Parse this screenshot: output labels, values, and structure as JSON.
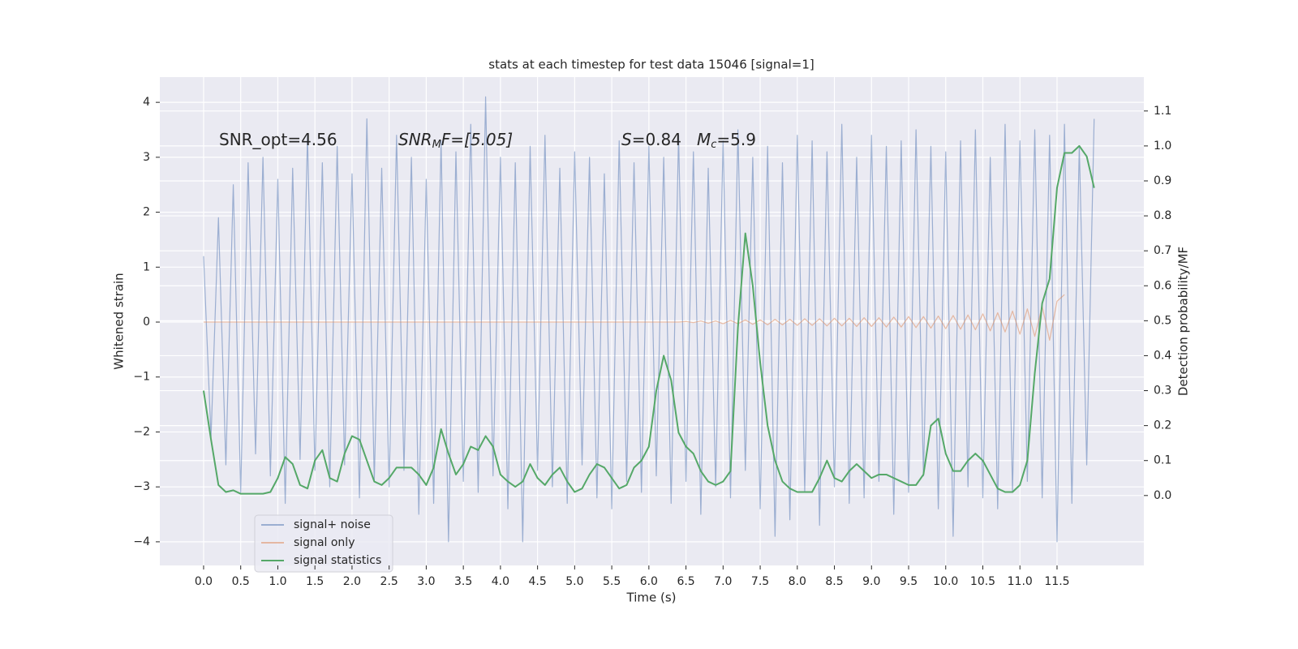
{
  "chart_data": {
    "type": "line",
    "title": "stats at each timestep for test data 15046 [signal=1]",
    "xlabel": "Time (s)",
    "ylabel": "Whitened strain",
    "y2label": "Detection probability/MF",
    "annotations": [
      [
        "SNR_opt=4.56"
      ],
      [
        "SNR",
        "M",
        "F=[5.05]"
      ],
      [
        "S",
        "=0.84"
      ],
      [
        "M",
        "c",
        "=5.9"
      ]
    ],
    "grid": true,
    "legend": "lower left",
    "xlim": [
      -0.59,
      12.67
    ],
    "ylim": [
      -4.43,
      4.46
    ],
    "y2lim": [
      -0.2,
      1.197
    ],
    "xticks": [
      {
        "value": 0,
        "label": "0.0"
      },
      {
        "value": 0.5,
        "label": "0.5"
      },
      {
        "value": 1,
        "label": "1.0"
      },
      {
        "value": 1.5,
        "label": "1.5"
      },
      {
        "value": 2,
        "label": "2.0"
      },
      {
        "value": 2.5,
        "label": "2.5"
      },
      {
        "value": 3,
        "label": "3.0"
      },
      {
        "value": 3.5,
        "label": "3.5"
      },
      {
        "value": 4,
        "label": "4.0"
      },
      {
        "value": 4.5,
        "label": "4.5"
      },
      {
        "value": 5,
        "label": "5.0"
      },
      {
        "value": 5.5,
        "label": "5.5"
      },
      {
        "value": 6,
        "label": "6.0"
      },
      {
        "value": 6.5,
        "label": "6.5"
      },
      {
        "value": 7,
        "label": "7.0"
      },
      {
        "value": 7.5,
        "label": "7.5"
      },
      {
        "value": 8,
        "label": "8.0"
      },
      {
        "value": 8.5,
        "label": "8.5"
      },
      {
        "value": 9,
        "label": "9.0"
      },
      {
        "value": 9.5,
        "label": "9.5"
      },
      {
        "value": 10,
        "label": "10.0"
      },
      {
        "value": 10.5,
        "label": "10.5"
      },
      {
        "value": 11,
        "label": "11.0"
      },
      {
        "value": 11.5,
        "label": "11.5"
      }
    ],
    "yticks": [
      {
        "value": -4,
        "label": "−4"
      },
      {
        "value": -3,
        "label": "−3"
      },
      {
        "value": -2,
        "label": "−2"
      },
      {
        "value": -1,
        "label": "−1"
      },
      0,
      1,
      2,
      3,
      4
    ],
    "y2ticks": [
      {
        "value": 0,
        "label": "0.0"
      },
      {
        "value": 0.1,
        "label": "0.1"
      },
      {
        "value": 0.2,
        "label": "0.2"
      },
      {
        "value": 0.3,
        "label": "0.3"
      },
      {
        "value": 0.4,
        "label": "0.4"
      },
      {
        "value": 0.5,
        "label": "0.5"
      },
      {
        "value": 0.6,
        "label": "0.6"
      },
      {
        "value": 0.7,
        "label": "0.7"
      },
      {
        "value": 0.8,
        "label": "0.8"
      },
      {
        "value": 0.9,
        "label": "0.9"
      },
      {
        "value": 1,
        "label": "1.0"
      },
      {
        "value": 1.1,
        "label": "1.1"
      }
    ],
    "x": [
      0,
      0.1,
      0.2,
      0.3,
      0.4,
      0.5,
      0.6,
      0.7,
      0.8,
      0.9,
      1,
      1.1,
      1.2,
      1.3,
      1.4,
      1.5,
      1.6,
      1.7,
      1.8,
      1.9,
      2,
      2.1,
      2.2,
      2.3,
      2.4,
      2.5,
      2.6,
      2.7,
      2.8,
      2.9,
      3,
      3.1,
      3.2,
      3.3,
      3.4,
      3.5,
      3.6,
      3.7,
      3.8,
      3.9,
      4,
      4.1,
      4.2,
      4.3,
      4.4,
      4.5,
      4.6,
      4.7,
      4.8,
      4.9,
      5,
      5.1,
      5.2,
      5.3,
      5.4,
      5.5,
      5.6,
      5.7,
      5.8,
      5.9,
      6,
      6.1,
      6.2,
      6.3,
      6.4,
      6.5,
      6.6,
      6.7,
      6.8,
      6.9,
      7,
      7.1,
      7.2,
      7.3,
      7.4,
      7.5,
      7.6,
      7.7,
      7.8,
      7.9,
      8,
      8.1,
      8.2,
      8.3,
      8.4,
      8.5,
      8.6,
      8.7,
      8.8,
      8.9,
      9,
      9.1,
      9.2,
      9.3,
      9.4,
      9.5,
      9.6,
      9.7,
      9.8,
      9.9,
      10,
      10.1,
      10.2,
      10.3,
      10.4,
      10.5,
      10.6,
      10.7,
      10.8,
      10.9,
      11,
      11.1,
      11.2,
      11.3,
      11.4,
      11.5,
      11.6,
      11.7,
      11.8,
      11.9,
      12
    ],
    "series": [
      {
        "name": "signal+ noise",
        "color": "#4c72b0",
        "opacity": 0.5,
        "axis": "y",
        "values": [
          1.2,
          -2.1,
          1.9,
          -2.6,
          2.5,
          -3.1,
          2.9,
          -2.4,
          3.0,
          -2.8,
          2.6,
          -3.3,
          2.8,
          -2.5,
          3.4,
          -2.7,
          2.9,
          -3.0,
          3.2,
          -2.6,
          2.7,
          -3.2,
          3.7,
          -2.9,
          2.8,
          -3.0,
          3.4,
          -2.7,
          3.0,
          -3.5,
          2.6,
          -3.3,
          3.3,
          -4.0,
          3.1,
          -2.9,
          3.6,
          -3.1,
          4.1,
          -2.8,
          3.0,
          -3.4,
          2.9,
          -4.0,
          3.2,
          -2.7,
          3.4,
          -3.0,
          2.8,
          -3.3,
          3.1,
          -2.6,
          3.0,
          -3.2,
          2.7,
          -3.4,
          3.3,
          -2.9,
          2.9,
          -3.1,
          3.2,
          -2.8,
          3.0,
          -3.3,
          3.4,
          -2.9,
          3.1,
          -3.5,
          2.8,
          -3.0,
          3.3,
          -3.2,
          3.5,
          -2.7,
          3.0,
          -3.4,
          3.2,
          -3.9,
          2.9,
          -3.6,
          3.4,
          -3.1,
          3.3,
          -3.7,
          3.1,
          -3.0,
          3.6,
          -3.3,
          3.0,
          -3.2,
          3.4,
          -2.9,
          3.2,
          -3.5,
          3.3,
          -3.1,
          3.5,
          -2.8,
          3.2,
          -3.4,
          3.1,
          -3.9,
          3.3,
          -3.0,
          3.5,
          -3.2,
          3.0,
          -3.4,
          3.6,
          -3.1,
          3.3,
          -2.9,
          3.5,
          -3.2,
          3.4,
          -4.0,
          3.6,
          -3.3,
          3.2,
          -2.6,
          3.7
        ]
      },
      {
        "name": "signal only",
        "color": "#dd8452",
        "opacity": 0.5,
        "axis": "y",
        "values": [
          0,
          0,
          0,
          0,
          0,
          0,
          0,
          0,
          0,
          0,
          0,
          0,
          0,
          0,
          0,
          0,
          0,
          0,
          0,
          0,
          0,
          0,
          0,
          0,
          0,
          0,
          0,
          0,
          0,
          0,
          0,
          0,
          0,
          0,
          0,
          0,
          0,
          0,
          0,
          0,
          0,
          0,
          0,
          0,
          0,
          0,
          0,
          0,
          0,
          0,
          0,
          0,
          0,
          0,
          0,
          0,
          0,
          0,
          0,
          0,
          0,
          0,
          0,
          0,
          0,
          0.01,
          -0.01,
          0.02,
          -0.02,
          0.02,
          -0.03,
          0.03,
          -0.03,
          0.04,
          -0.04,
          0.04,
          -0.05,
          0.05,
          -0.05,
          0.05,
          -0.06,
          0.06,
          -0.06,
          0.06,
          -0.07,
          0.07,
          -0.07,
          0.07,
          -0.08,
          0.08,
          -0.08,
          0.08,
          -0.09,
          0.09,
          -0.09,
          0.1,
          -0.1,
          0.1,
          -0.11,
          0.11,
          -0.12,
          0.12,
          -0.13,
          0.13,
          -0.14,
          0.15,
          -0.16,
          0.17,
          -0.18,
          0.2,
          -0.22,
          0.24,
          -0.26,
          0.29,
          -0.33,
          0.38,
          0.5,
          null,
          null,
          null,
          null
        ]
      },
      {
        "name": "signal statistics",
        "color": "#55a868",
        "opacity": 1,
        "axis": "y2",
        "values": [
          0.3,
          0.16,
          0.03,
          0.01,
          0.015,
          0.005,
          0.005,
          0.005,
          0.005,
          0.01,
          0.05,
          0.11,
          0.09,
          0.03,
          0.02,
          0.1,
          0.13,
          0.05,
          0.04,
          0.12,
          0.17,
          0.16,
          0.1,
          0.04,
          0.03,
          0.05,
          0.08,
          0.08,
          0.08,
          0.06,
          0.03,
          0.08,
          0.19,
          0.12,
          0.06,
          0.09,
          0.14,
          0.13,
          0.17,
          0.14,
          0.06,
          0.04,
          0.025,
          0.04,
          0.09,
          0.05,
          0.03,
          0.06,
          0.08,
          0.04,
          0.01,
          0.02,
          0.06,
          0.09,
          0.08,
          0.05,
          0.02,
          0.03,
          0.08,
          0.1,
          0.14,
          0.3,
          0.4,
          0.33,
          0.18,
          0.14,
          0.12,
          0.07,
          0.04,
          0.03,
          0.04,
          0.07,
          0.48,
          0.75,
          0.6,
          0.38,
          0.2,
          0.1,
          0.04,
          0.02,
          0.01,
          0.01,
          0.01,
          0.05,
          0.1,
          0.05,
          0.04,
          0.07,
          0.09,
          0.07,
          0.05,
          0.06,
          0.06,
          0.05,
          0.04,
          0.03,
          0.03,
          0.06,
          0.2,
          0.22,
          0.12,
          0.07,
          0.07,
          0.1,
          0.12,
          0.1,
          0.06,
          0.02,
          0.01,
          0.01,
          0.03,
          0.1,
          0.35,
          0.55,
          0.62,
          0.88,
          0.98,
          0.98,
          1.0,
          0.97,
          0.88
        ]
      }
    ]
  }
}
